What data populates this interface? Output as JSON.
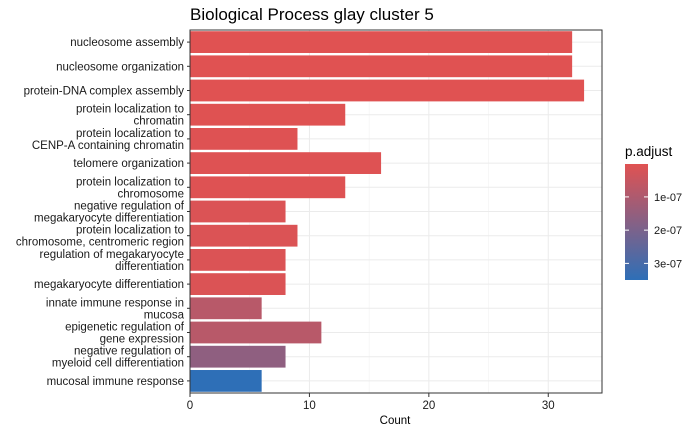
{
  "chart_data": {
    "type": "bar",
    "orientation": "horizontal",
    "title": "Biological Process glay cluster 5",
    "xlabel": "Count",
    "ylabel": "",
    "xlim": [
      0,
      34.5
    ],
    "xticks": [
      0,
      10,
      20,
      30
    ],
    "grid": true,
    "categories": [
      "nucleosome assembly",
      "nucleosome organization",
      "protein-DNA complex assembly",
      "protein localization to chromatin",
      "protein localization to CENP-A containing chromatin",
      "telomere organization",
      "protein localization to chromosome",
      "negative regulation of megakaryocyte differentiation",
      "protein localization to chromosome, centromeric region",
      "regulation of megakaryocyte differentiation",
      "megakaryocyte differentiation",
      "innate immune response in mucosa",
      "epigenetic regulation of gene expression",
      "negative regulation of myeloid cell differentiation",
      "mucosal immune response"
    ],
    "category_lines": [
      [
        "nucleosome assembly"
      ],
      [
        "nucleosome organization"
      ],
      [
        "protein-DNA complex assembly"
      ],
      [
        "protein localization to",
        "chromatin"
      ],
      [
        "protein localization to",
        "CENP-A containing chromatin"
      ],
      [
        "telomere organization"
      ],
      [
        "protein localization to",
        "chromosome"
      ],
      [
        "negative regulation of",
        "megakaryocyte differentiation"
      ],
      [
        "protein localization to",
        "chromosome, centromeric region"
      ],
      [
        "regulation of megakaryocyte",
        "differentiation"
      ],
      [
        "megakaryocyte differentiation"
      ],
      [
        "innate immune response in",
        "mucosa"
      ],
      [
        "epigenetic regulation of",
        "gene expression"
      ],
      [
        "negative regulation of",
        "myeloid cell differentiation"
      ],
      [
        "mucosal immune response"
      ]
    ],
    "values": [
      32,
      32,
      33,
      13,
      9,
      16,
      13,
      8,
      9,
      8,
      8,
      6,
      11,
      8,
      6
    ],
    "p_adjust": [
      1e-09,
      1e-09,
      1e-09,
      2e-09,
      5e-09,
      5e-09,
      5e-09,
      1e-08,
      1e-08,
      1e-08,
      1e-08,
      8e-08,
      8e-08,
      1.6e-07,
      3.5e-07
    ],
    "legend": {
      "title": "p.adjust",
      "position": "right",
      "ticks": [
        1e-07,
        2e-07,
        3e-07
      ],
      "tick_labels": [
        "1e-07",
        "2e-07",
        "3e-07"
      ],
      "range": [
        1e-09,
        3.5e-07
      ],
      "low_color": "#e05252",
      "high_color": "#2e6fb7"
    }
  }
}
